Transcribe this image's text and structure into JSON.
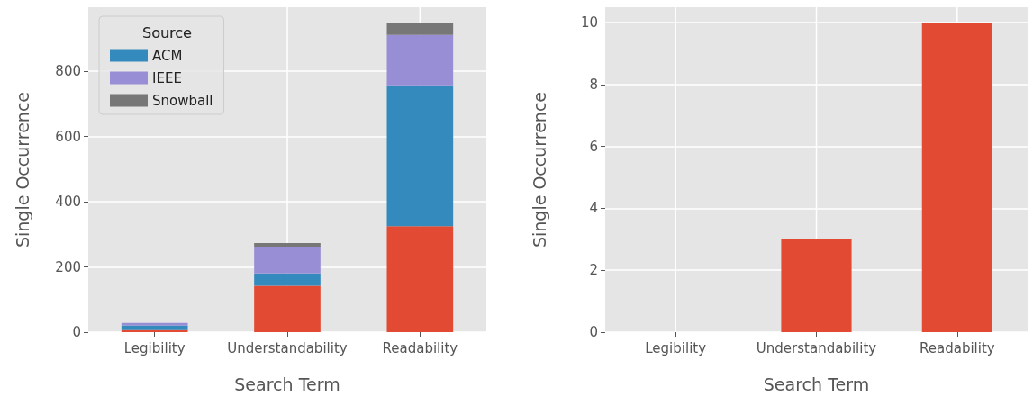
{
  "chart_data": [
    {
      "type": "bar",
      "stacked": true,
      "xlabel": "Search Term",
      "ylabel": "Single Occurrence",
      "legend_title": "Source",
      "legend": "top left",
      "grid": true,
      "categories": [
        "Legibility",
        "Understandability",
        "Readability"
      ],
      "series": [
        {
          "color": "#e24a33",
          "values": [
            6,
            142,
            325
          ]
        },
        {
          "name": "ACM",
          "color": "#348abd",
          "values": [
            15,
            38,
            432
          ]
        },
        {
          "name": "IEEE",
          "color": "#988ed5",
          "values": [
            7,
            82,
            154
          ]
        },
        {
          "name": "Snowball",
          "color": "#777777",
          "values": [
            0,
            11,
            38
          ]
        }
      ],
      "ylim": [
        0,
        996
      ],
      "yticks": [
        0,
        200,
        400,
        600,
        800
      ]
    },
    {
      "type": "bar",
      "xlabel": "Search Term",
      "ylabel": "Single Occurrence",
      "grid": true,
      "categories": [
        "Legibility",
        "Understandability",
        "Readability"
      ],
      "series": [
        {
          "color": "#e24a33",
          "values": [
            0,
            3,
            10
          ]
        }
      ],
      "ylim": [
        0,
        10.5
      ],
      "yticks": [
        0,
        2,
        4,
        6,
        8,
        10
      ]
    }
  ]
}
